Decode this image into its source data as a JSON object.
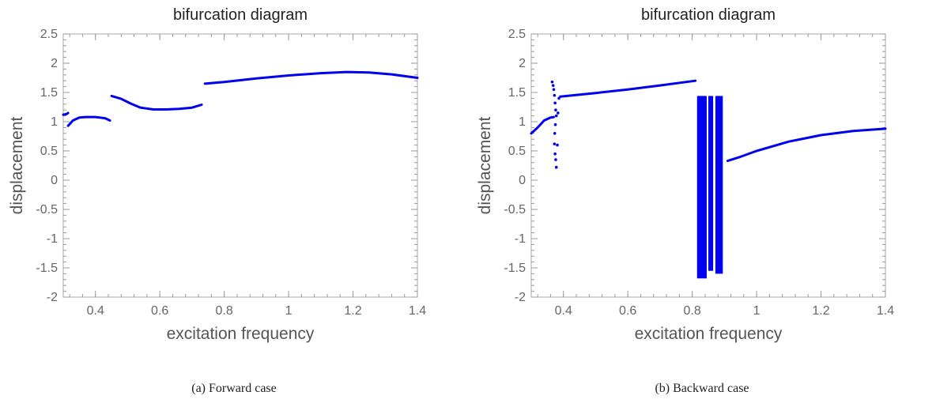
{
  "chart_data": [
    {
      "type": "scatter",
      "title": "bifurcation diagram",
      "xlabel": "excitation frequency",
      "ylabel": "displacement",
      "xlim": [
        0.3,
        1.4
      ],
      "ylim": [
        -2,
        2.5
      ],
      "xticks": [
        "0.4",
        "0.6",
        "0.8",
        "1",
        "1.2",
        "1.4"
      ],
      "yticks": [
        "2.5",
        "2",
        "1.5",
        "1",
        "0.5",
        "0",
        "-0.5",
        "-1",
        "-1.5",
        "-2"
      ],
      "caption": "(a)  Forward case",
      "color": "#0000ee",
      "series": [
        {
          "segments": [
            [
              [
                0.3,
                1.12
              ],
              [
                0.31,
                1.13
              ],
              [
                0.315,
                1.15
              ]
            ],
            [
              [
                0.315,
                0.93
              ],
              [
                0.33,
                1.02
              ],
              [
                0.35,
                1.07
              ],
              [
                0.37,
                1.08
              ],
              [
                0.4,
                1.08
              ],
              [
                0.43,
                1.06
              ],
              [
                0.445,
                1.02
              ]
            ],
            [
              [
                0.45,
                1.44
              ],
              [
                0.48,
                1.39
              ],
              [
                0.51,
                1.31
              ],
              [
                0.54,
                1.24
              ],
              [
                0.58,
                1.21
              ],
              [
                0.62,
                1.21
              ],
              [
                0.66,
                1.22
              ],
              [
                0.7,
                1.24
              ],
              [
                0.73,
                1.29
              ]
            ],
            [
              [
                0.74,
                1.65
              ],
              [
                0.8,
                1.68
              ],
              [
                0.9,
                1.74
              ],
              [
                1.0,
                1.79
              ],
              [
                1.1,
                1.83
              ],
              [
                1.18,
                1.85
              ],
              [
                1.25,
                1.84
              ],
              [
                1.32,
                1.81
              ],
              [
                1.4,
                1.75
              ]
            ]
          ]
        }
      ]
    },
    {
      "type": "scatter",
      "title": "bifurcation diagram",
      "xlabel": "excitation frequency",
      "ylabel": "displacement",
      "xlim": [
        0.3,
        1.4
      ],
      "ylim": [
        -2,
        2.5
      ],
      "xticks": [
        "0.4",
        "0.6",
        "0.8",
        "1",
        "1.2",
        "1.4"
      ],
      "yticks": [
        "2.5",
        "2",
        "1.5",
        "1",
        "0.5",
        "0",
        "-0.5",
        "-1",
        "-1.5",
        "-2"
      ],
      "caption": "(b)  Backward case",
      "color": "#0000ee",
      "series": [
        {
          "segments": [
            [
              [
                0.3,
                0.8
              ],
              [
                0.32,
                0.9
              ],
              [
                0.34,
                1.02
              ],
              [
                0.36,
                1.07
              ],
              [
                0.37,
                1.08
              ]
            ],
            [
              [
                0.39,
                1.43
              ],
              [
                0.5,
                1.49
              ],
              [
                0.6,
                1.55
              ],
              [
                0.7,
                1.62
              ],
              [
                0.81,
                1.7
              ]
            ],
            [
              [
                0.91,
                0.33
              ],
              [
                0.95,
                0.4
              ],
              [
                1.0,
                0.5
              ],
              [
                1.1,
                0.66
              ],
              [
                1.2,
                0.77
              ],
              [
                1.3,
                0.84
              ],
              [
                1.4,
                0.88
              ]
            ]
          ]
        },
        {
          "points": [
            [
              0.365,
              1.68
            ],
            [
              0.368,
              1.62
            ],
            [
              0.37,
              1.55
            ],
            [
              0.372,
              1.45
            ],
            [
              0.374,
              1.32
            ],
            [
              0.376,
              1.2
            ],
            [
              0.378,
              1.1
            ],
            [
              0.375,
              0.95
            ],
            [
              0.373,
              0.8
            ],
            [
              0.372,
              0.62
            ],
            [
              0.374,
              0.45
            ],
            [
              0.376,
              0.35
            ],
            [
              0.378,
              0.22
            ],
            [
              0.381,
              0.6
            ],
            [
              0.383,
              1.15
            ],
            [
              0.386,
              1.4
            ]
          ]
        },
        {
          "bands": [
            {
              "x": [
                0.815,
                0.845
              ],
              "y": [
                -1.68,
                1.44
              ]
            },
            {
              "x": [
                0.85,
                0.865
              ],
              "y": [
                -1.55,
                1.44
              ]
            },
            {
              "x": [
                0.872,
                0.895
              ],
              "y": [
                -1.6,
                1.44
              ]
            }
          ]
        }
      ]
    }
  ]
}
